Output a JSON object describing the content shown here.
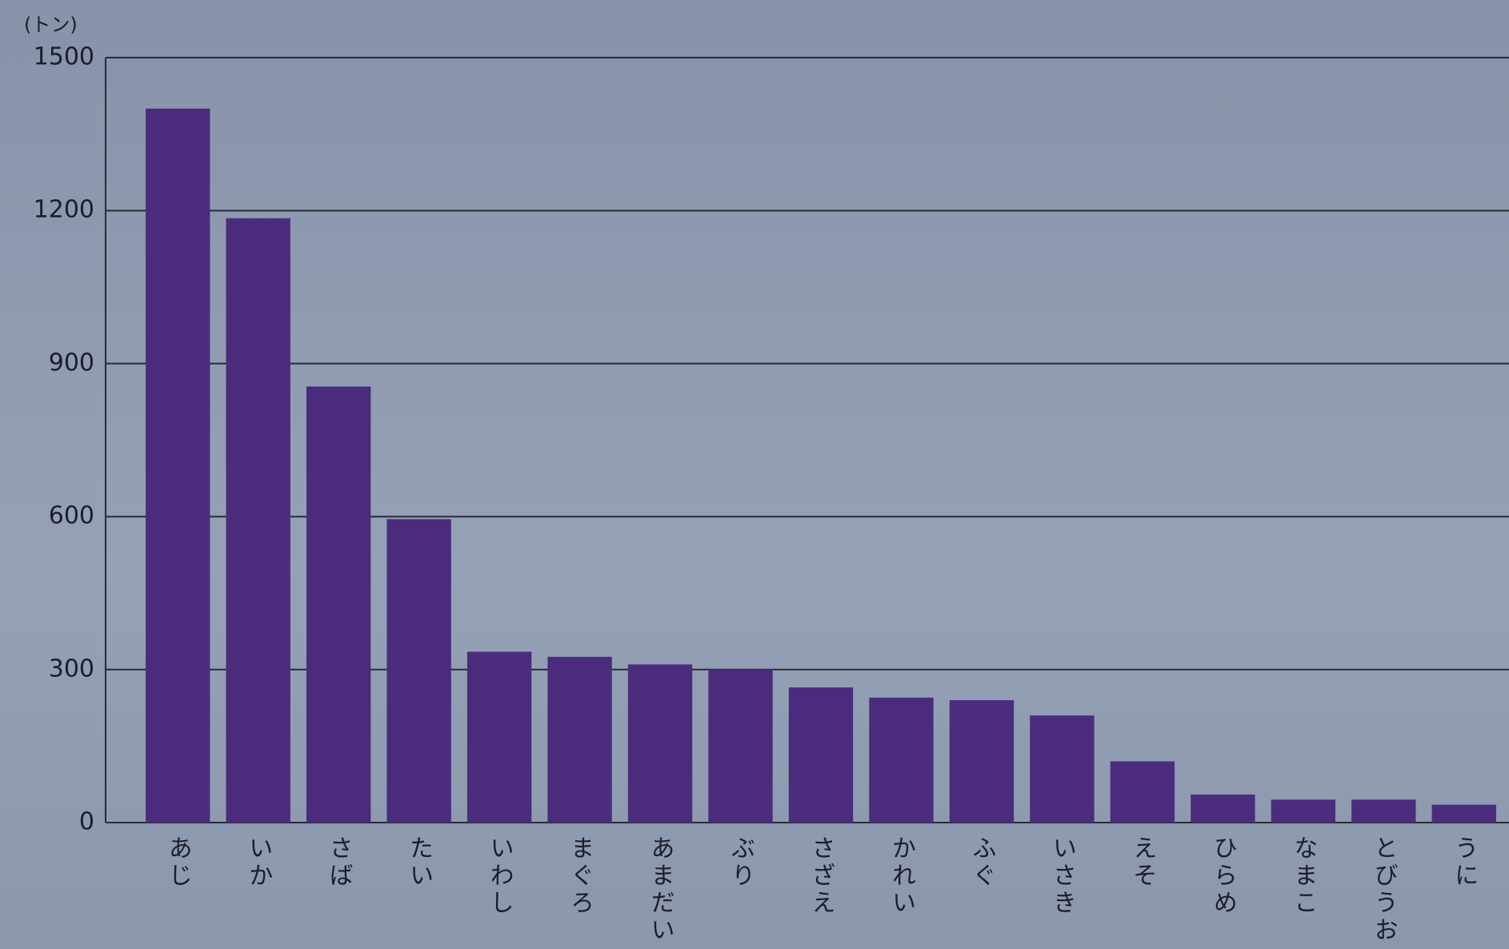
{
  "chart_data": {
    "type": "bar",
    "y_label": "(トン)",
    "categories": [
      "あじ",
      "いか",
      "さば",
      "たい",
      "いわし",
      "まぐろ",
      "あまだい",
      "ぶり",
      "さざえ",
      "かれい",
      "ふぐ",
      "いさき",
      "えそ",
      "ひらめ",
      "なまこ",
      "とびうお",
      "うに"
    ],
    "values": [
      1400,
      1185,
      855,
      595,
      335,
      325,
      310,
      300,
      265,
      245,
      240,
      210,
      120,
      55,
      45,
      45,
      35
    ],
    "color": "#4b2c7c",
    "ylim": [
      0,
      1500
    ],
    "yticks": [
      0,
      300,
      600,
      900,
      1200,
      1500
    ],
    "grid": true
  }
}
